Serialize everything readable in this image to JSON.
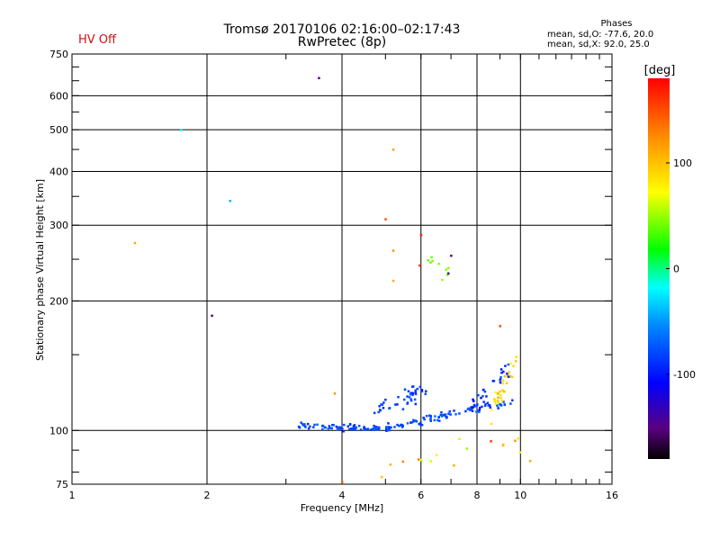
{
  "header": {
    "title": "Tromsø 20170106 02:16:00–02:17:43",
    "subtitle": "RwPretec (8p)",
    "status": "HV Off"
  },
  "phase_legend": {
    "title": "Phases",
    "o_stat": "mean, sd,O: -77.6, 20.0",
    "x_stat": "mean, sd,X:  92.0, 25.0"
  },
  "colorbar": {
    "unit_label": "[deg]",
    "min": -180,
    "max": 180,
    "ticks": [
      {
        "value": 100,
        "label": "100"
      },
      {
        "value": 0,
        "label": "0"
      },
      {
        "value": -100,
        "label": "-100"
      }
    ]
  },
  "chart_data": {
    "type": "scatter",
    "title": "Tromsø 20170106 02:16:00–02:17:43",
    "subtitle": "RwPretec (8p)",
    "xlabel": "Frequency [MHz]",
    "ylabel": "Stationary phase Virtual Height [km]",
    "xscale": "log",
    "yscale": "log",
    "xlim": [
      1,
      16
    ],
    "ylim": [
      75,
      750
    ],
    "xticks": [
      1,
      2,
      4,
      6,
      8,
      10,
      16
    ],
    "yticks": [
      75,
      100,
      200,
      300,
      400,
      500,
      600,
      750
    ],
    "x_gridlines": [
      2,
      4,
      6,
      8,
      10
    ],
    "y_gridlines": [
      100,
      200,
      300,
      400,
      500,
      600
    ],
    "color_variable": "phase [deg]",
    "scatter_clusters": [
      {
        "name": "F-trace",
        "f_start": 5.0,
        "f_end": 9.6,
        "h_start": 101,
        "h_end": 117,
        "count": 90,
        "spread": 2.0,
        "phase_mean": -82,
        "phase_sd": 12
      },
      {
        "name": "F-trace-low",
        "f_start": 3.2,
        "f_end": 4.9,
        "h_start": 103,
        "h_end": 101,
        "count": 75,
        "spread": 1.5,
        "phase_mean": -80,
        "phase_sd": 10
      },
      {
        "name": "upper-band",
        "f_start": 4.7,
        "f_end": 6.2,
        "h_start": 112,
        "h_end": 125,
        "count": 45,
        "spread": 4.0,
        "phase_mean": -85,
        "phase_sd": 12
      },
      {
        "name": "X-trace",
        "f_start": 8.6,
        "f_end": 9.8,
        "h_start": 110,
        "h_end": 145,
        "count": 35,
        "spread": 5.0,
        "phase_mean": 90,
        "phase_sd": 25
      },
      {
        "name": "mixed-9MHz",
        "f_start": 7.8,
        "f_end": 9.5,
        "h_start": 112,
        "h_end": 140,
        "count": 28,
        "spread": 6.0,
        "phase_mean": -90,
        "phase_sd": 25
      },
      {
        "name": "green-cluster",
        "f_start": 6.2,
        "f_end": 7.0,
        "h_start": 246,
        "h_end": 232,
        "count": 10,
        "spread": 4.0,
        "phase_mean": 45,
        "phase_sd": 12
      },
      {
        "name": "scatter-low",
        "f_start": 5.0,
        "f_end": 10.0,
        "h_start": 85,
        "h_end": 95,
        "count": 15,
        "spread": 6.0,
        "phase_mean": 100,
        "phase_sd": 60
      }
    ],
    "points": [
      {
        "f": 3.55,
        "h": 660,
        "phase": -140
      },
      {
        "f": 1.75,
        "h": 500,
        "phase": -15
      },
      {
        "f": 2.25,
        "h": 342,
        "phase": -40
      },
      {
        "f": 1.38,
        "h": 273,
        "phase": 110
      },
      {
        "f": 2.05,
        "h": 185,
        "phase": -150
      },
      {
        "f": 5.2,
        "h": 450,
        "phase": 115
      },
      {
        "f": 5.0,
        "h": 310,
        "phase": 150
      },
      {
        "f": 5.2,
        "h": 262,
        "phase": 120
      },
      {
        "f": 5.2,
        "h": 223,
        "phase": 110
      },
      {
        "f": 6.0,
        "h": 285,
        "phase": 170
      },
      {
        "f": 5.95,
        "h": 242,
        "phase": 150
      },
      {
        "f": 7.0,
        "h": 255,
        "phase": -150
      },
      {
        "f": 6.9,
        "h": 232,
        "phase": -140
      },
      {
        "f": 3.85,
        "h": 122,
        "phase": 120
      },
      {
        "f": 4.0,
        "h": 76,
        "phase": 140
      },
      {
        "f": 4.9,
        "h": 78,
        "phase": 100
      },
      {
        "f": 7.1,
        "h": 83,
        "phase": 110
      },
      {
        "f": 9.0,
        "h": 175,
        "phase": 150
      },
      {
        "f": 10.5,
        "h": 85,
        "phase": 110
      }
    ]
  }
}
